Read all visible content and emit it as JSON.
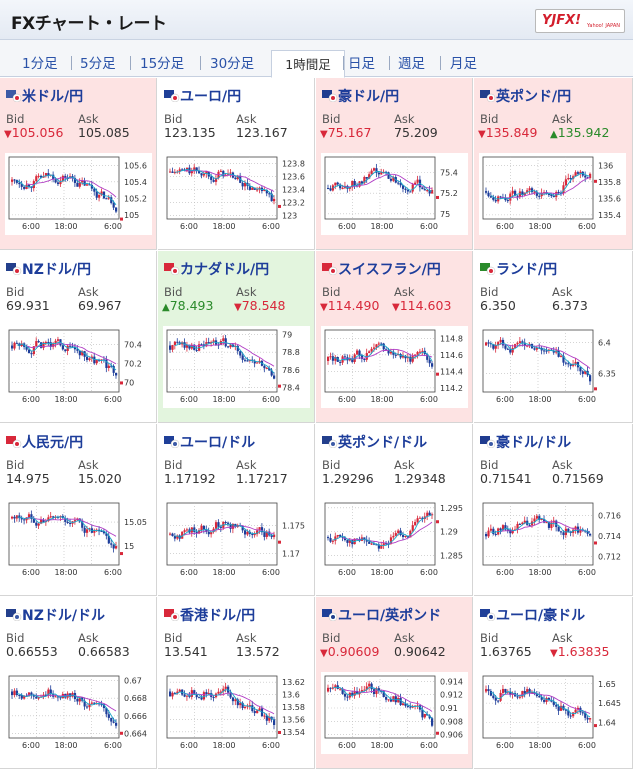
{
  "header": {
    "title": "FXチャート・レート",
    "logo_text": "YJFX!",
    "logo_sub": "Yahoo! JAPAN"
  },
  "tabs": [
    {
      "label": "1分足"
    },
    {
      "label": "5分足"
    },
    {
      "label": "15分足"
    },
    {
      "label": "30分足"
    },
    {
      "label": "1時間足",
      "active": true
    },
    {
      "label": "日足"
    },
    {
      "label": "週足"
    },
    {
      "label": "月足"
    }
  ],
  "labels": {
    "bid": "Bid",
    "ask": "Ask"
  },
  "colors": {
    "up": "#2a8a2a",
    "down": "#d8283a",
    "bg_up": "#e3f5de",
    "bg_down": "#fde3e3",
    "ma": "#b23fc5",
    "ema": "#1aa6c8"
  },
  "pairs": [
    {
      "name": "米ドル/円",
      "flag": "us-jp",
      "bid": "105.056",
      "ask": "105.085",
      "bid_dir": "down",
      "ask_dir": "none",
      "bg": "down",
      "chart_data": {
        "type": "candlestick",
        "x_ticks": [
          "6:00",
          "18:00",
          "6:00"
        ],
        "y_ticks": [
          "105.6",
          "105.4",
          "105.2",
          "105"
        ],
        "ylim": [
          104.95,
          105.7
        ],
        "trend": "flat-down"
      }
    },
    {
      "name": "ユーロ/円",
      "flag": "eu-jp",
      "bid": "123.135",
      "ask": "123.167",
      "bid_dir": "none",
      "ask_dir": "none",
      "bg": "neutral",
      "chart_data": {
        "type": "candlestick",
        "x_ticks": [
          "6:00",
          "18:00",
          "6:00"
        ],
        "y_ticks": [
          "123.8",
          "123.6",
          "123.4",
          "123.2",
          "123"
        ],
        "ylim": [
          122.95,
          123.9
        ],
        "trend": "down"
      }
    },
    {
      "name": "豪ドル/円",
      "flag": "au-jp",
      "bid": "75.167",
      "ask": "75.209",
      "bid_dir": "down",
      "ask_dir": "none",
      "bg": "down",
      "chart_data": {
        "type": "candlestick",
        "x_ticks": [
          "6:00",
          "18:00",
          "6:00"
        ],
        "y_ticks": [
          "75.4",
          "75.2",
          "75"
        ],
        "ylim": [
          74.95,
          75.55
        ],
        "trend": "flat"
      }
    },
    {
      "name": "英ポンド/円",
      "flag": "gb-jp",
      "bid": "135.849",
      "ask": "135.942",
      "bid_dir": "down",
      "ask_dir": "up",
      "bg": "down",
      "chart_data": {
        "type": "candlestick",
        "x_ticks": [
          "6:00",
          "18:00",
          "6:00"
        ],
        "y_ticks": [
          "136",
          "135.8",
          "135.6",
          "135.4"
        ],
        "ylim": [
          135.35,
          136.1
        ],
        "trend": "up"
      }
    },
    {
      "name": "NZドル/円",
      "flag": "nz-jp",
      "bid": "69.931",
      "ask": "69.967",
      "bid_dir": "none",
      "ask_dir": "none",
      "bg": "neutral",
      "chart_data": {
        "type": "candlestick",
        "x_ticks": [
          "6:00",
          "18:00",
          "6:00"
        ],
        "y_ticks": [
          "70.4",
          "70.2",
          "70"
        ],
        "ylim": [
          69.9,
          70.55
        ],
        "trend": "down"
      }
    },
    {
      "name": "カナダドル/円",
      "flag": "ca-jp",
      "bid": "78.493",
      "ask": "78.548",
      "bid_dir": "up",
      "ask_dir": "down",
      "bg": "up",
      "chart_data": {
        "type": "candlestick",
        "x_ticks": [
          "6:00",
          "18:00",
          "6:00"
        ],
        "y_ticks": [
          "79",
          "78.8",
          "78.6",
          "78.4"
        ],
        "ylim": [
          78.35,
          79.05
        ],
        "trend": "down"
      }
    },
    {
      "name": "スイスフラン/円",
      "flag": "ch-jp",
      "bid": "114.490",
      "ask": "114.603",
      "bid_dir": "down",
      "ask_dir": "down",
      "bg": "down",
      "chart_data": {
        "type": "candlestick",
        "x_ticks": [
          "6:00",
          "18:00",
          "6:00"
        ],
        "y_ticks": [
          "114.8",
          "114.6",
          "114.4",
          "114.2"
        ],
        "ylim": [
          114.15,
          114.9
        ],
        "trend": "flat"
      }
    },
    {
      "name": "ランド/円",
      "flag": "za-jp",
      "bid": "6.350",
      "ask": "6.373",
      "bid_dir": "none",
      "ask_dir": "none",
      "bg": "neutral",
      "chart_data": {
        "type": "candlestick",
        "x_ticks": [
          "6:00",
          "18:00",
          "6:00"
        ],
        "y_ticks": [
          "6.4",
          "6.35"
        ],
        "ylim": [
          6.32,
          6.42
        ],
        "trend": "down"
      }
    },
    {
      "name": "人民元/円",
      "flag": "cn-jp",
      "bid": "14.975",
      "ask": "15.020",
      "bid_dir": "none",
      "ask_dir": "none",
      "bg": "neutral",
      "chart_data": {
        "type": "candlestick",
        "x_ticks": [
          "6:00",
          "18:00",
          "6:00"
        ],
        "y_ticks": [
          "15.05",
          "15"
        ],
        "ylim": [
          14.96,
          15.09
        ],
        "trend": "down"
      }
    },
    {
      "name": "ユーロ/ドル",
      "flag": "eu-us",
      "bid": "1.17192",
      "ask": "1.17217",
      "bid_dir": "none",
      "ask_dir": "none",
      "bg": "neutral",
      "chart_data": {
        "type": "candlestick",
        "x_ticks": [
          "6:00",
          "18:00",
          "6:00"
        ],
        "y_ticks": [
          "1.175",
          "1.17"
        ],
        "ylim": [
          1.168,
          1.179
        ],
        "trend": "flat"
      }
    },
    {
      "name": "英ポンド/ドル",
      "flag": "gb-us",
      "bid": "1.29296",
      "ask": "1.29348",
      "bid_dir": "none",
      "ask_dir": "none",
      "bg": "neutral",
      "chart_data": {
        "type": "candlestick",
        "x_ticks": [
          "6:00",
          "18:00",
          "6:00"
        ],
        "y_ticks": [
          "1.295",
          "1.29",
          "1.285"
        ],
        "ylim": [
          1.283,
          1.296
        ],
        "trend": "up"
      }
    },
    {
      "name": "豪ドル/ドル",
      "flag": "au-us",
      "bid": "0.71541",
      "ask": "0.71569",
      "bid_dir": "none",
      "ask_dir": "none",
      "bg": "neutral",
      "chart_data": {
        "type": "candlestick",
        "x_ticks": [
          "6:00",
          "18:00",
          "6:00"
        ],
        "y_ticks": [
          "0.716",
          "0.714",
          "0.712"
        ],
        "ylim": [
          0.7112,
          0.7172
        ],
        "trend": "flat"
      }
    },
    {
      "name": "NZドル/ドル",
      "flag": "nz-us",
      "bid": "0.66553",
      "ask": "0.66583",
      "bid_dir": "none",
      "ask_dir": "none",
      "bg": "neutral",
      "chart_data": {
        "type": "candlestick",
        "x_ticks": [
          "6:00",
          "18:00",
          "6:00"
        ],
        "y_ticks": [
          "0.67",
          "0.668",
          "0.666",
          "0.664"
        ],
        "ylim": [
          0.6635,
          0.6705
        ],
        "trend": "down"
      }
    },
    {
      "name": "香港ドル/円",
      "flag": "hk-jp",
      "bid": "13.541",
      "ask": "13.572",
      "bid_dir": "none",
      "ask_dir": "none",
      "bg": "neutral",
      "chart_data": {
        "type": "candlestick",
        "x_ticks": [
          "6:00",
          "18:00",
          "6:00"
        ],
        "y_ticks": [
          "13.62",
          "13.6",
          "13.58",
          "13.56",
          "13.54"
        ],
        "ylim": [
          13.53,
          13.63
        ],
        "trend": "down"
      }
    },
    {
      "name": "ユーロ/英ポンド",
      "flag": "eu-gb",
      "bid": "0.90609",
      "ask": "0.90642",
      "bid_dir": "down",
      "ask_dir": "none",
      "bg": "down",
      "chart_data": {
        "type": "candlestick",
        "x_ticks": [
          "6:00",
          "18:00",
          "6:00"
        ],
        "y_ticks": [
          "0.914",
          "0.912",
          "0.91",
          "0.908",
          "0.906"
        ],
        "ylim": [
          0.9055,
          0.9148
        ],
        "trend": "down"
      }
    },
    {
      "name": "ユーロ/豪ドル",
      "flag": "eu-au",
      "bid": "1.63765",
      "ask": "1.63835",
      "bid_dir": "none",
      "ask_dir": "down",
      "bg": "neutral",
      "chart_data": {
        "type": "candlestick",
        "x_ticks": [
          "6:00",
          "18:00",
          "6:00"
        ],
        "y_ticks": [
          "1.65",
          "1.645",
          "1.64"
        ],
        "ylim": [
          1.636,
          1.652
        ],
        "trend": "down"
      }
    }
  ]
}
